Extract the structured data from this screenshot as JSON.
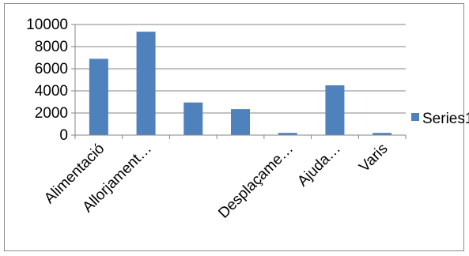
{
  "chart_data": {
    "type": "bar",
    "categories": [
      "Alimentació",
      "Allorjament…",
      "",
      "",
      "Desplaçame…",
      "Ajuda…",
      "Varis"
    ],
    "series": [
      {
        "name": "Series1",
        "values": [
          6900,
          9350,
          2950,
          2350,
          200,
          4500,
          200
        ]
      }
    ],
    "ylim": [
      0,
      10000
    ],
    "yticks": [
      0,
      2000,
      4000,
      6000,
      8000,
      10000
    ],
    "grid": true,
    "legend_position": "right",
    "colors": {
      "bar": "#4f81bd",
      "grid": "#868686",
      "axis": "#868686"
    }
  }
}
